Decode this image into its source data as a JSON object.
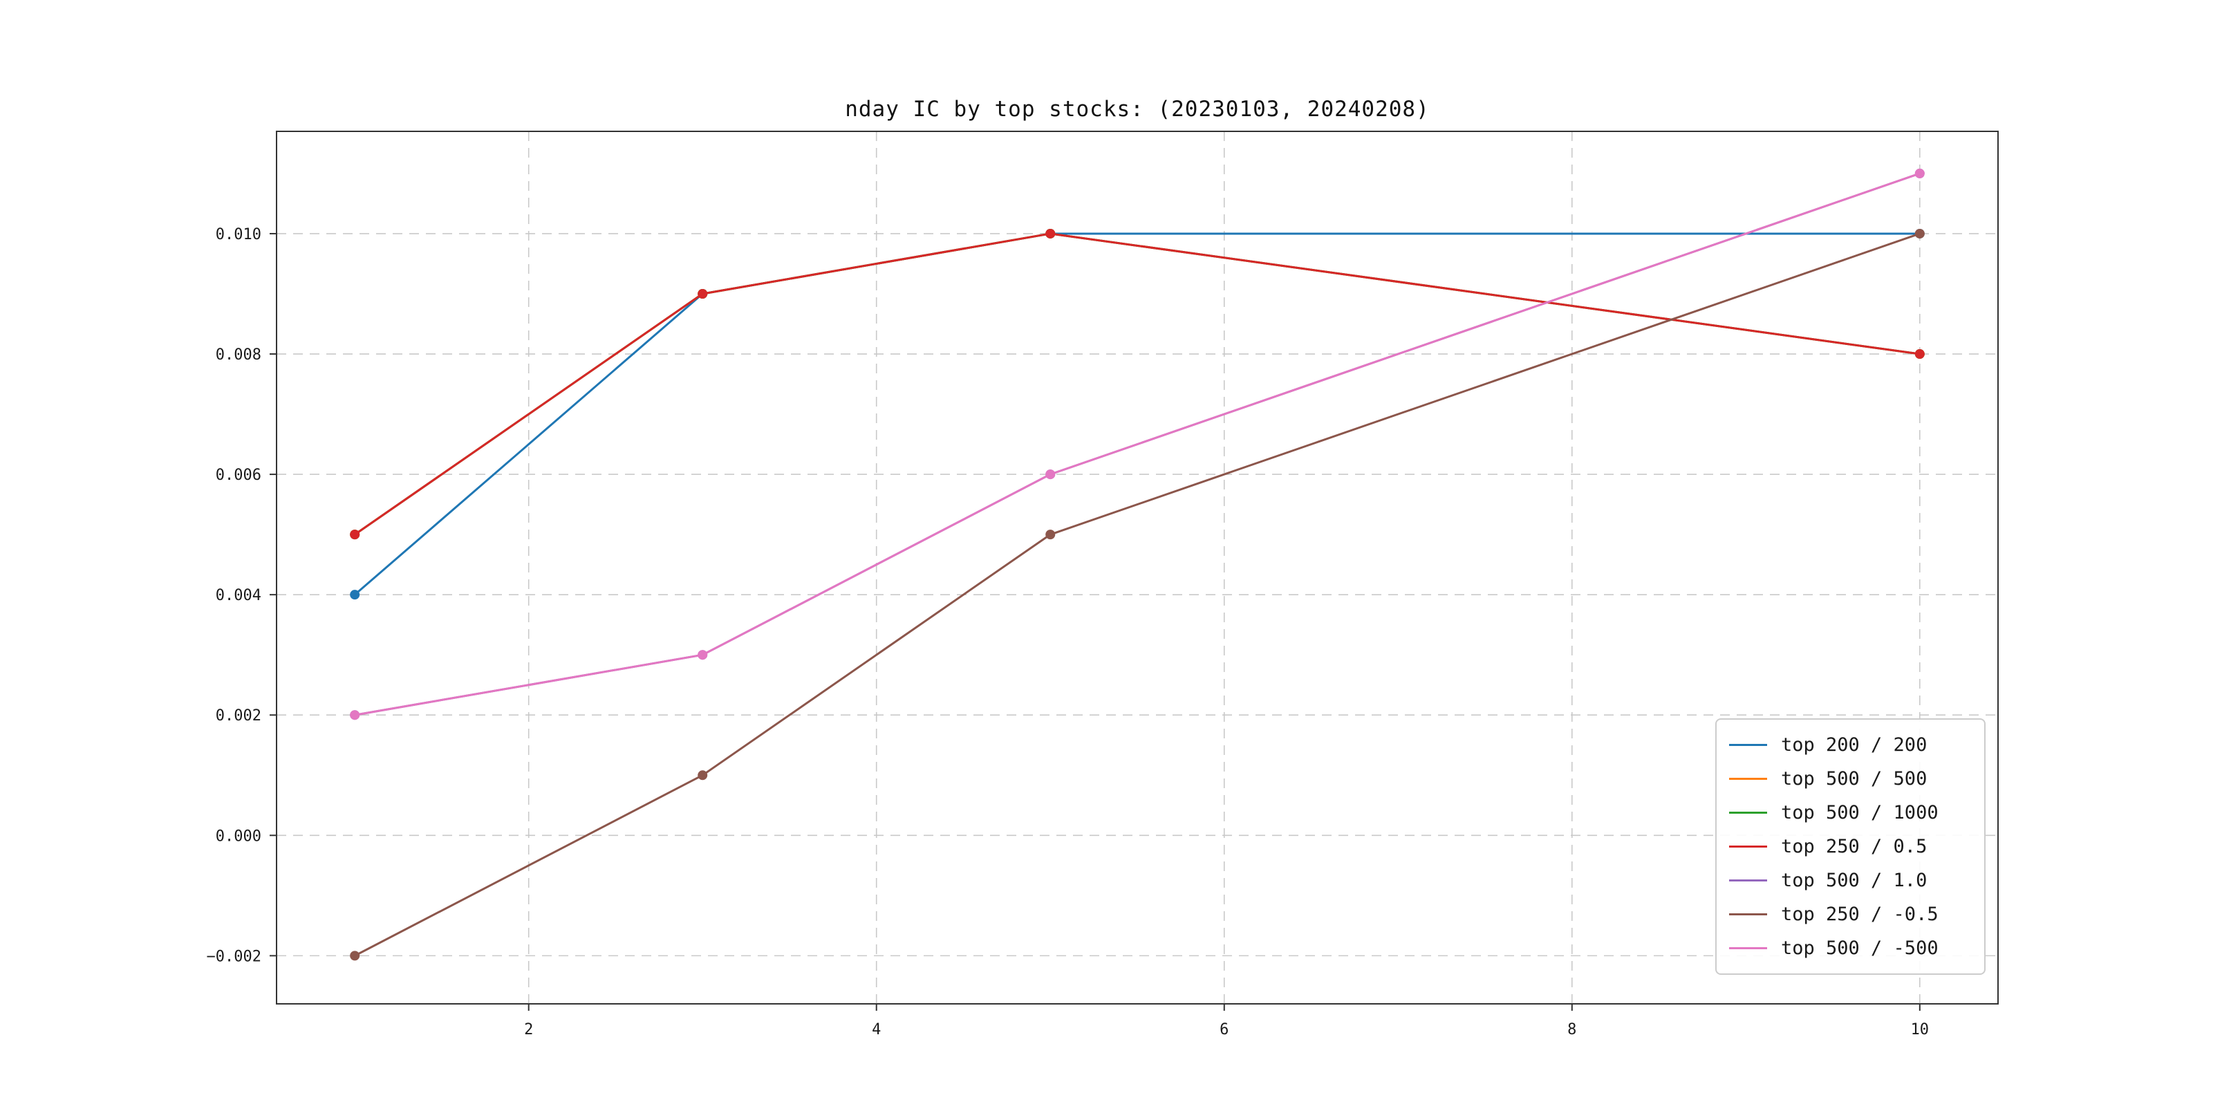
{
  "chart_data": {
    "type": "line",
    "title": "nday IC by top stocks: (20230103, 20240208)",
    "xlabel": "",
    "ylabel": "",
    "x": [
      1,
      3,
      5,
      10
    ],
    "xlim": [
      0.55,
      10.45
    ],
    "ylim": [
      -0.0028,
      0.0117
    ],
    "xticks": [
      2,
      4,
      6,
      8,
      10
    ],
    "yticks": [
      -0.002,
      0.0,
      0.002,
      0.004,
      0.006,
      0.008,
      0.01
    ],
    "grid": true,
    "legend_position": "lower right",
    "series": [
      {
        "name": "top 200 / 200",
        "color": "#1f77b4",
        "values": [
          0.004,
          0.009,
          0.01,
          0.01
        ]
      },
      {
        "name": "top 500 / 500",
        "color": "#ff7f0e",
        "values": [
          0.005,
          0.009,
          0.01,
          0.008
        ],
        "occluded": true
      },
      {
        "name": "top 500 / 1000",
        "color": "#2ca02c",
        "values": [
          0.005,
          0.009,
          0.01,
          0.008
        ],
        "occluded": true
      },
      {
        "name": "top 250 / 0.5",
        "color": "#d62728",
        "values": [
          0.005,
          0.009,
          0.01,
          0.008
        ]
      },
      {
        "name": "top 500 / 1.0",
        "color": "#9467bd",
        "values": [
          0.002,
          0.003,
          0.006,
          0.011
        ],
        "occluded": true
      },
      {
        "name": "top 250 / -0.5",
        "color": "#8c564b",
        "values": [
          -0.002,
          0.001,
          0.005,
          0.01
        ]
      },
      {
        "name": "top 500 / -500",
        "color": "#e377c2",
        "values": [
          0.002,
          0.003,
          0.006,
          0.011
        ]
      }
    ]
  }
}
